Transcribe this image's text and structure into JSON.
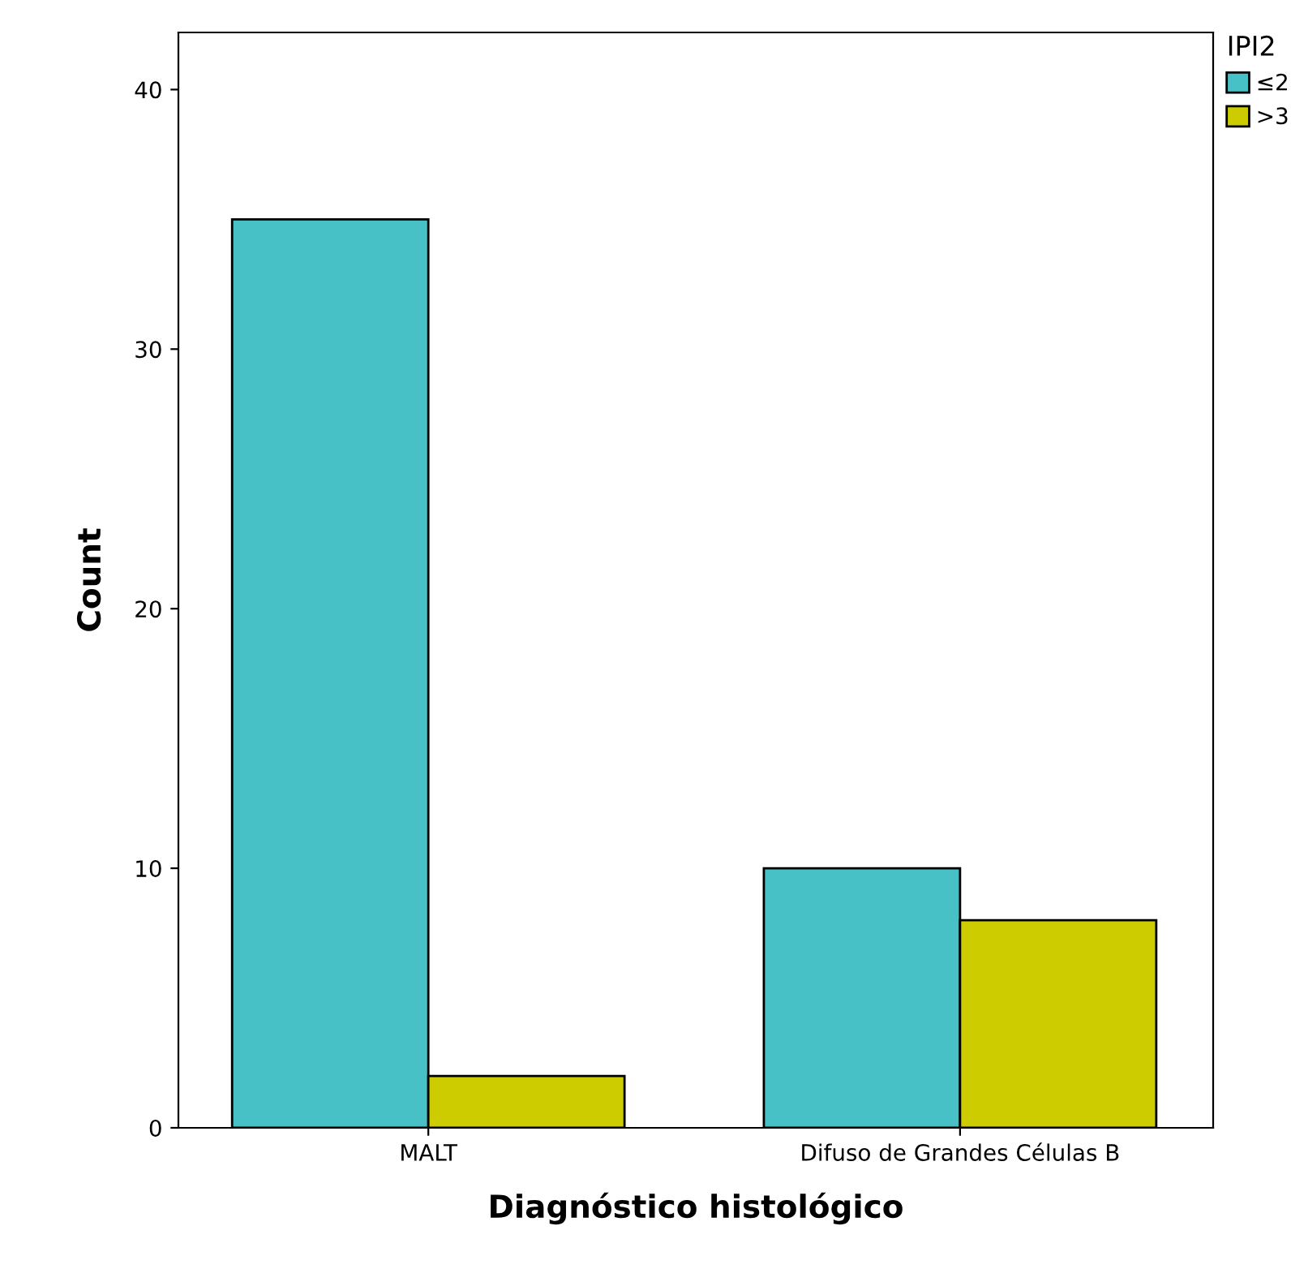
{
  "chart_data": {
    "type": "bar",
    "xlabel": "Diagnóstico histológico",
    "ylabel": "Count",
    "legend_title": "IPI2",
    "categories": [
      "MALT",
      "Difuso de Grandes Células B"
    ],
    "series": [
      {
        "name": "≤2",
        "color": "#48c1c6",
        "values": [
          35,
          10
        ]
      },
      {
        "name": ">3",
        "color": "#cccc00",
        "values": [
          2,
          8
        ]
      }
    ],
    "ylim": [
      0,
      42.2
    ],
    "yticks": [
      0,
      10,
      20,
      30,
      40
    ],
    "grid": false,
    "legend": "top right"
  }
}
